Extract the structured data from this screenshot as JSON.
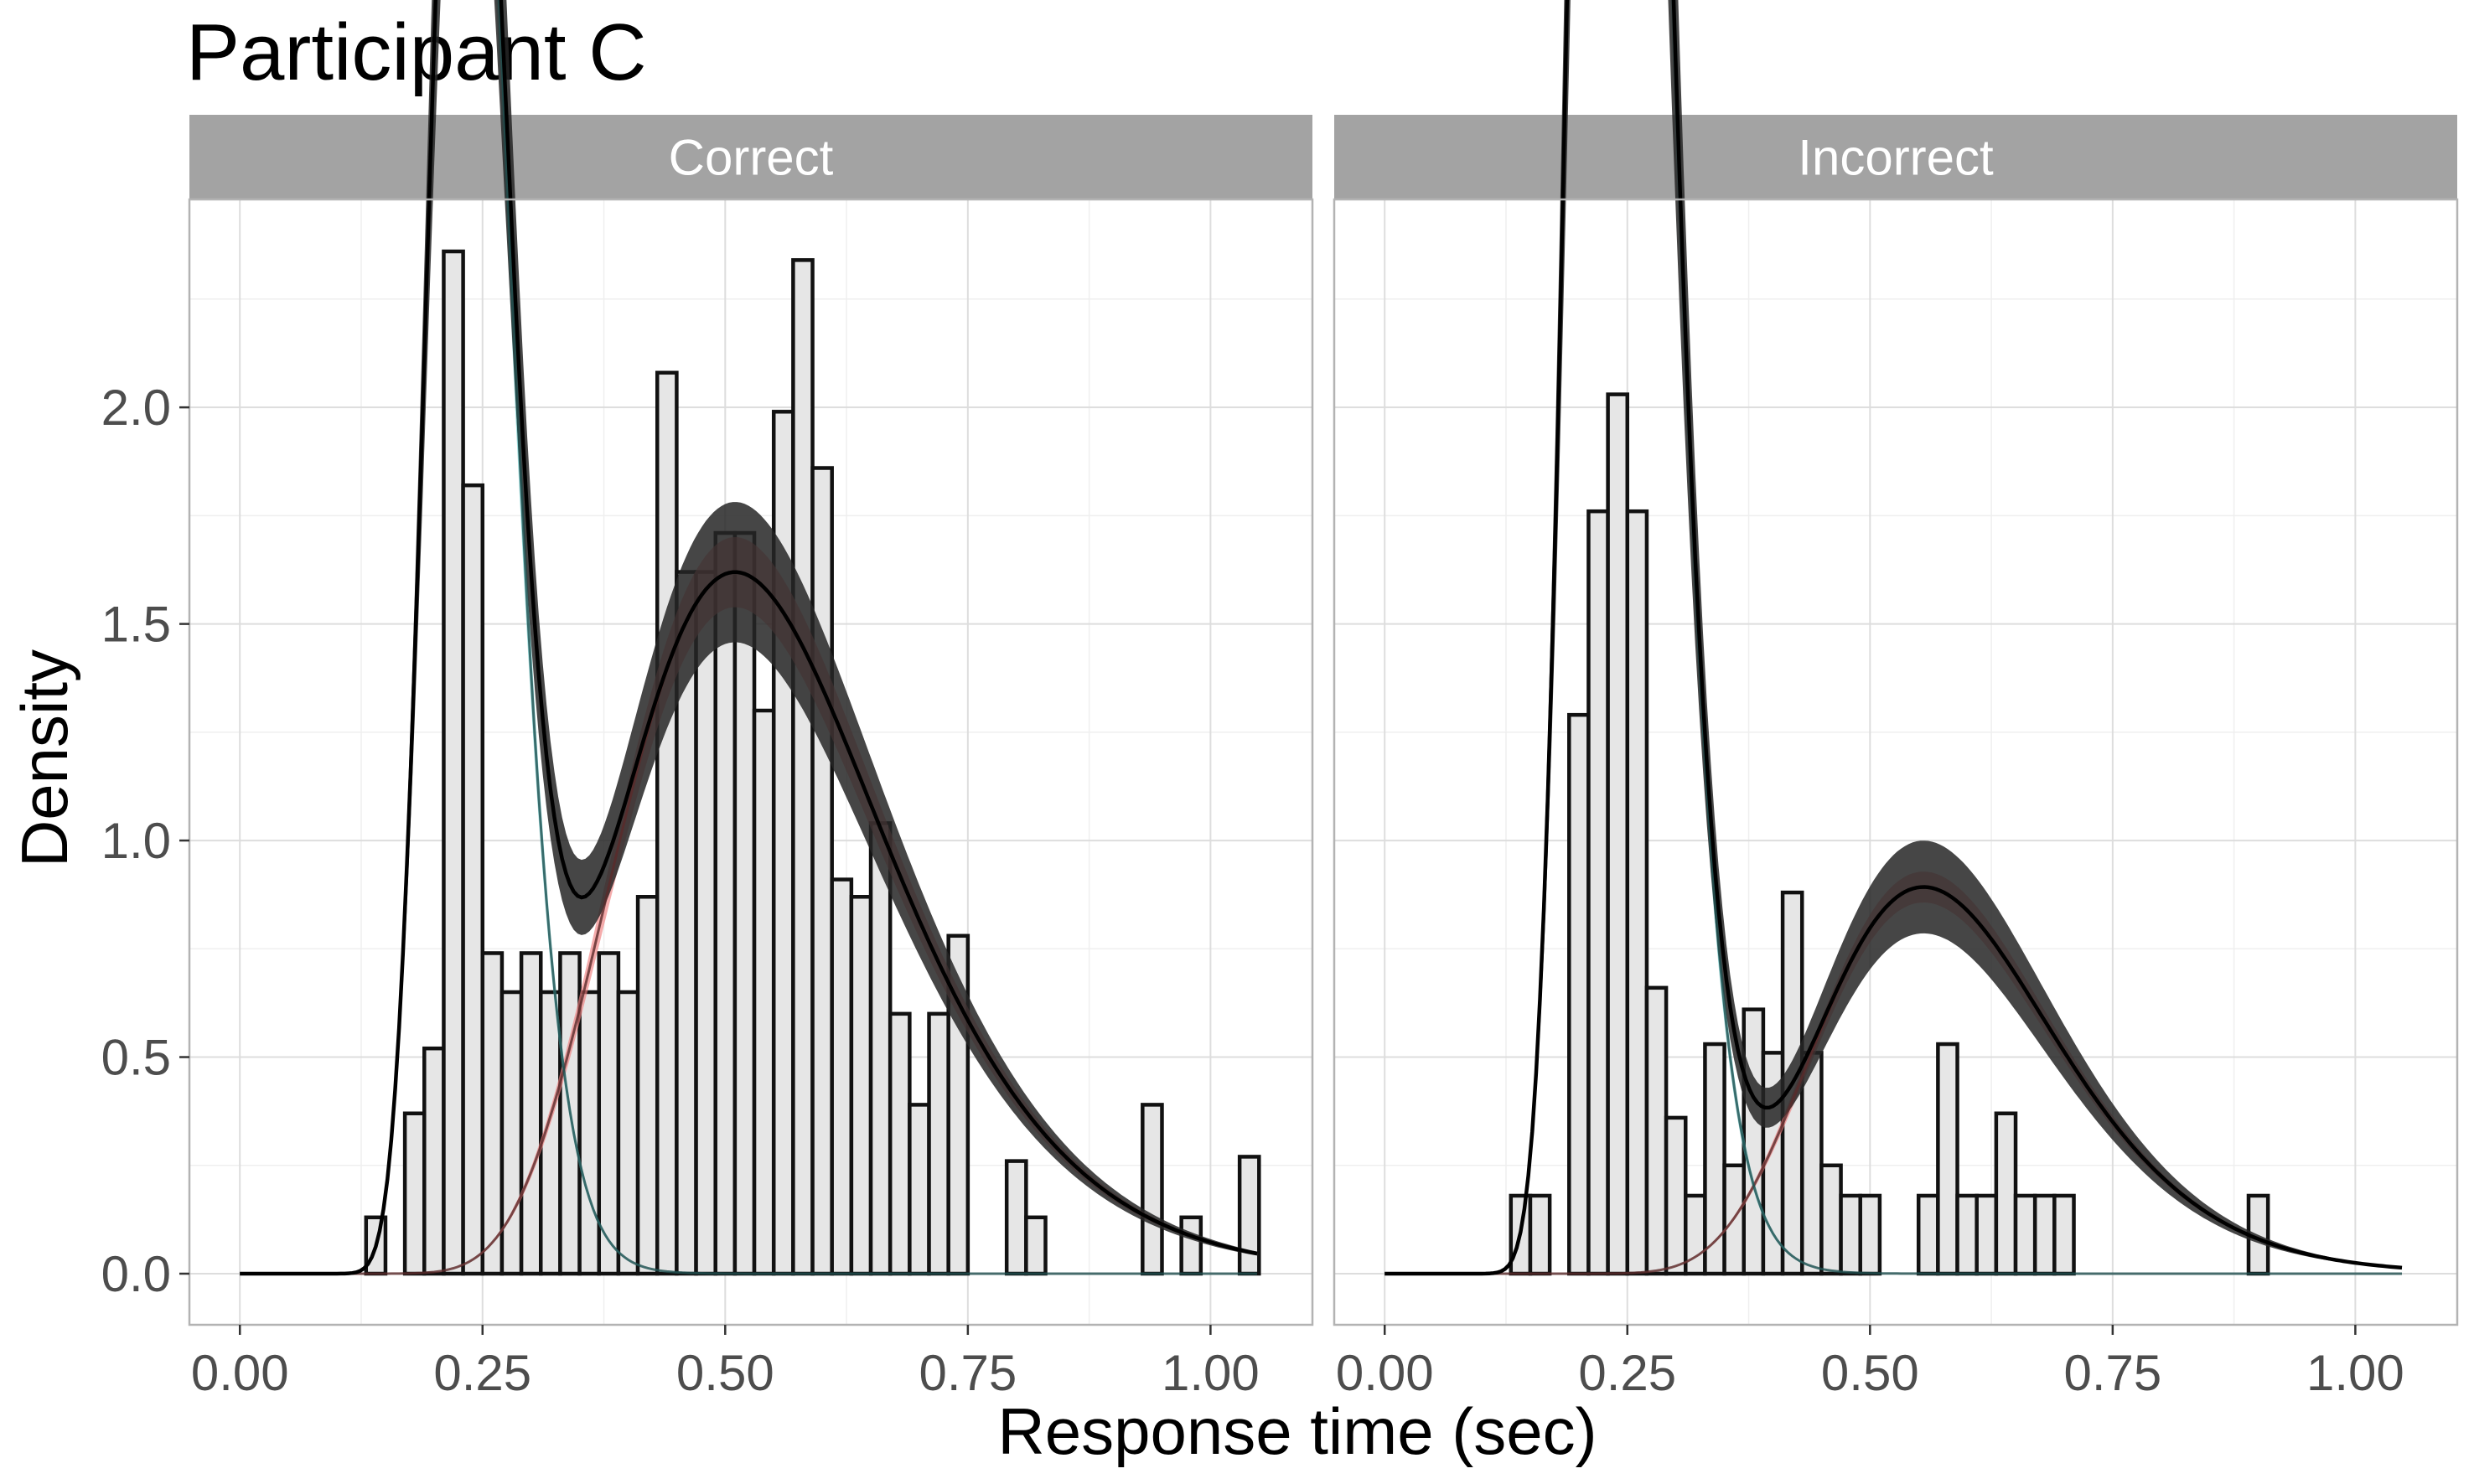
{
  "chart_data": {
    "type": "histogram_density",
    "title": "Participant C",
    "xlabel": "Response time (sec)",
    "ylabel": "Density",
    "xlim": [
      -0.052,
      1.105
    ],
    "ylim": [
      -0.118,
      2.48
    ],
    "x_ticks": [
      0.0,
      0.25,
      0.5,
      0.75,
      1.0
    ],
    "x_tick_labels": [
      "0.00",
      "0.25",
      "0.50",
      "0.75",
      "1.00"
    ],
    "y_ticks": [
      0.0,
      0.5,
      1.0,
      1.5,
      2.0
    ],
    "y_tick_labels": [
      "0.0",
      "0.5",
      "1.0",
      "1.5",
      "2.0"
    ],
    "grid": true,
    "legend": "none",
    "bin_width": 0.02,
    "colors": {
      "histogram_fill": "#e6e6e6",
      "histogram_outline": "#111111",
      "fast_component": "#5ec8c8",
      "slow_component": "#f08080",
      "mixture_band": "#262626",
      "line": "#000000",
      "strip": "#a3a3a3"
    },
    "panels": [
      {
        "label": "Correct",
        "histogram": {
          "bin_centers": [
            0.14,
            0.16,
            0.18,
            0.2,
            0.22,
            0.24,
            0.26,
            0.28,
            0.3,
            0.32,
            0.34,
            0.36,
            0.38,
            0.4,
            0.42,
            0.44,
            0.46,
            0.48,
            0.5,
            0.52,
            0.54,
            0.56,
            0.58,
            0.6,
            0.62,
            0.64,
            0.66,
            0.68,
            0.7,
            0.72,
            0.74,
            0.76,
            0.78,
            0.8,
            0.82,
            0.84,
            0.86,
            0.88,
            0.9,
            0.92,
            0.94,
            0.96,
            0.98,
            1.0,
            1.02,
            1.04
          ],
          "density": [
            0.13,
            0,
            0.37,
            0.52,
            2.36,
            1.82,
            0.74,
            0.65,
            0.74,
            0.65,
            0.74,
            0.65,
            0.74,
            0.65,
            0.87,
            2.08,
            1.62,
            1.62,
            1.71,
            1.71,
            1.3,
            1.99,
            2.34,
            1.86,
            0.91,
            0.87,
            1.04,
            0.6,
            0.39,
            0.6,
            0.78,
            0,
            0,
            0.26,
            0.13,
            0,
            0,
            0,
            0,
            0,
            0.39,
            0,
            0.13,
            0,
            0,
            0.27
          ]
        },
        "fast_component": {
          "mu": -1.43,
          "sigma": 0.175,
          "shift": 0,
          "weight": 0.42,
          "band_halfwidth": 0.05
        },
        "slow_component": {
          "mu": -0.6,
          "sigma": 0.27,
          "shift": 0,
          "weight": 0.58,
          "band_halfwidth": 0.05
        },
        "mixture": {
          "mu_fast": -1.43,
          "sigma_fast": 0.175,
          "mu_slow": -0.6,
          "sigma_slow": 0.27,
          "weight_fast": 0.42,
          "band_halfwidth": 0.1
        }
      },
      {
        "label": "Incorrect",
        "histogram": {
          "bin_centers": [
            0.14,
            0.16,
            0.18,
            0.2,
            0.22,
            0.24,
            0.26,
            0.28,
            0.3,
            0.32,
            0.34,
            0.36,
            0.38,
            0.4,
            0.42,
            0.44,
            0.46,
            0.48,
            0.5,
            0.52,
            0.54,
            0.56,
            0.58,
            0.6,
            0.62,
            0.64,
            0.66,
            0.68,
            0.7,
            0.72,
            0.74,
            0.76,
            0.78,
            0.8,
            0.82,
            0.84,
            0.86,
            0.88,
            0.9
          ],
          "density": [
            0.18,
            0.18,
            0,
            1.29,
            1.76,
            2.03,
            1.76,
            0.66,
            0.36,
            0.18,
            0.53,
            0.25,
            0.61,
            0.51,
            0.88,
            0.51,
            0.25,
            0.18,
            0.18,
            0,
            0,
            0.18,
            0.53,
            0.18,
            0.18,
            0.37,
            0.18,
            0.18,
            0.18,
            0,
            0,
            0,
            0,
            0,
            0,
            0,
            0,
            0,
            0.18
          ]
        },
        "fast_component": {
          "mu": -1.41,
          "sigma": 0.18,
          "shift": 0,
          "weight": 0.72,
          "band_halfwidth": 0.06
        },
        "slow_component": {
          "mu": -0.54,
          "sigma": 0.22,
          "shift": 0,
          "weight": 0.28,
          "band_halfwidth": 0.04
        },
        "mixture": {
          "mu_fast": -1.41,
          "sigma_fast": 0.18,
          "mu_slow": -0.54,
          "sigma_slow": 0.22,
          "weight_fast": 0.72,
          "band_halfwidth": 0.12
        }
      }
    ]
  }
}
